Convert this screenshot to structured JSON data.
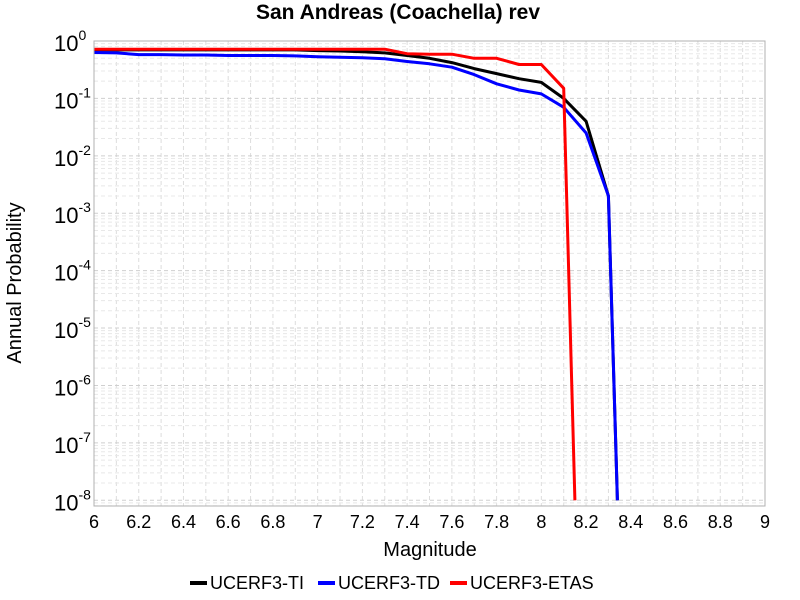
{
  "chart_data": {
    "type": "line",
    "title": "San Andreas (Coachella) rev",
    "xlabel": "Magnitude",
    "ylabel": "Annual Probability",
    "xlim": [
      6,
      9
    ],
    "ylim_log10": [
      -8.1,
      0
    ],
    "yscale": "log",
    "grid": true,
    "legend_position": "bottom-center",
    "x_ticks": [
      "6",
      "6.2",
      "6.4",
      "6.6",
      "6.8",
      "7",
      "7.2",
      "7.4",
      "7.6",
      "7.8",
      "8",
      "8.2",
      "8.4",
      "8.6",
      "8.8",
      "9"
    ],
    "y_ticks": [
      {
        "base": "10",
        "exp": "0"
      },
      {
        "base": "10",
        "exp": "-1"
      },
      {
        "base": "10",
        "exp": "-2"
      },
      {
        "base": "10",
        "exp": "-3"
      },
      {
        "base": "10",
        "exp": "-4"
      },
      {
        "base": "10",
        "exp": "-5"
      },
      {
        "base": "10",
        "exp": "-6"
      },
      {
        "base": "10",
        "exp": "-7"
      },
      {
        "base": "10",
        "exp": "-8"
      }
    ],
    "series": [
      {
        "name": "UCERF3-TI",
        "color": "#000000",
        "x": [
          6.0,
          6.1,
          6.2,
          6.3,
          6.4,
          6.5,
          6.6,
          6.7,
          6.8,
          6.9,
          7.0,
          7.1,
          7.2,
          7.3,
          7.4,
          7.5,
          7.6,
          7.7,
          7.8,
          7.9,
          8.0,
          8.1,
          8.2,
          8.3,
          8.34
        ],
        "y": [
          0.7,
          0.7,
          0.7,
          0.7,
          0.7,
          0.7,
          0.7,
          0.7,
          0.7,
          0.7,
          0.68,
          0.67,
          0.65,
          0.62,
          0.56,
          0.5,
          0.42,
          0.33,
          0.27,
          0.22,
          0.19,
          0.1,
          0.04,
          0.002,
          1e-08
        ]
      },
      {
        "name": "UCERF3-TD",
        "color": "#0000ff",
        "x": [
          6.0,
          6.1,
          6.2,
          6.3,
          6.4,
          6.5,
          6.6,
          6.7,
          6.8,
          6.9,
          7.0,
          7.1,
          7.2,
          7.3,
          7.4,
          7.5,
          7.6,
          7.7,
          7.8,
          7.9,
          8.0,
          8.1,
          8.2,
          8.3,
          8.34
        ],
        "y": [
          0.63,
          0.62,
          0.58,
          0.58,
          0.57,
          0.57,
          0.56,
          0.56,
          0.56,
          0.55,
          0.53,
          0.52,
          0.51,
          0.49,
          0.44,
          0.4,
          0.35,
          0.26,
          0.18,
          0.14,
          0.12,
          0.07,
          0.025,
          0.002,
          1e-08
        ]
      },
      {
        "name": "UCERF3-ETAS",
        "color": "#ff0000",
        "x": [
          6.0,
          6.1,
          6.2,
          6.3,
          6.4,
          6.5,
          6.6,
          6.7,
          6.8,
          6.9,
          7.0,
          7.1,
          7.2,
          7.3,
          7.4,
          7.5,
          7.6,
          7.7,
          7.8,
          7.9,
          8.0,
          8.1,
          8.15
        ],
        "y": [
          0.72,
          0.72,
          0.72,
          0.72,
          0.72,
          0.72,
          0.72,
          0.72,
          0.72,
          0.72,
          0.72,
          0.72,
          0.72,
          0.72,
          0.6,
          0.59,
          0.59,
          0.5,
          0.5,
          0.39,
          0.39,
          0.15,
          1e-08
        ]
      }
    ]
  }
}
